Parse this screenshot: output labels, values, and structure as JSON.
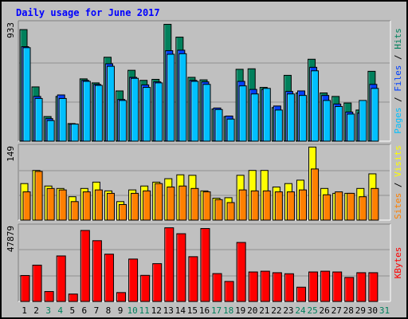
{
  "title": "Daily usage for June 2017",
  "colors": {
    "background": "#c0c0c0",
    "plot": "#c0c0c0",
    "hits": "#00805c",
    "files": "#0040ff",
    "pages": "#00c0ff",
    "visits": "#ffff00",
    "sites": "#ff8000",
    "kbytes": "#ff0000",
    "weekday_label": "#000000",
    "weekend_label": "#00805c",
    "title": "#0000ff"
  },
  "chart_data": [
    {
      "type": "bar",
      "name": "hits-files-pages",
      "ymax_label": "933",
      "ylim": [
        0,
        933
      ],
      "categories": [
        "1",
        "2",
        "3",
        "4",
        "5",
        "6",
        "7",
        "8",
        "9",
        "10",
        "11",
        "12",
        "13",
        "14",
        "15",
        "16",
        "17",
        "18",
        "19",
        "20",
        "21",
        "22",
        "23",
        "24",
        "25",
        "26",
        "27",
        "28",
        "29",
        "30",
        "31"
      ],
      "weekend": [
        "3",
        "4",
        "10",
        "11",
        "17",
        "18",
        "24",
        "25",
        "31"
      ],
      "legend": [
        "Pages",
        "Files",
        "Hits"
      ],
      "series": [
        {
          "name": "Hits",
          "color": "#00805c",
          "values": [
            888,
            432,
            196,
            356,
            140,
            496,
            464,
            668,
            400,
            564,
            484,
            492,
            930,
            828,
            508,
            488,
            256,
            196,
            572,
            576,
            428,
            268,
            524,
            384,
            652,
            384,
            356,
            304,
            248,
            556,
            0
          ]
        },
        {
          "name": "Files",
          "color": "#0040ff",
          "values": [
            752,
            356,
            180,
            368,
            136,
            484,
            452,
            616,
            332,
            508,
            448,
            472,
            720,
            724,
            484,
            472,
            264,
            200,
            476,
            412,
            412,
            280,
            396,
            400,
            588,
            364,
            296,
            232,
            224,
            452,
            0
          ]
        },
        {
          "name": "Pages",
          "color": "#00c0ff",
          "values": [
            744,
            340,
            164,
            340,
            136,
            476,
            444,
            596,
            324,
            500,
            428,
            464,
            692,
            696,
            476,
            452,
            252,
            176,
            440,
            376,
            420,
            248,
            376,
            364,
            560,
            324,
            276,
            216,
            324,
            420,
            0
          ]
        }
      ]
    },
    {
      "type": "bar",
      "name": "visits-sites",
      "ymax_label": "149",
      "ylim": [
        0,
        149
      ],
      "categories": [
        "1",
        "2",
        "3",
        "4",
        "5",
        "6",
        "7",
        "8",
        "9",
        "10",
        "11",
        "12",
        "13",
        "14",
        "15",
        "16",
        "17",
        "18",
        "19",
        "20",
        "21",
        "22",
        "23",
        "24",
        "25",
        "26",
        "27",
        "28",
        "29",
        "30",
        "31"
      ],
      "legend": [
        "Sites",
        "Visits"
      ],
      "series": [
        {
          "name": "Visits",
          "color": "#ffff00",
          "values": [
            75,
            102,
            70,
            65,
            48,
            65,
            78,
            60,
            38,
            62,
            70,
            78,
            85,
            93,
            92,
            60,
            45,
            46,
            92,
            102,
            102,
            68,
            75,
            82,
            150,
            65,
            55,
            55,
            65,
            95,
            0
          ]
        },
        {
          "name": "Sites",
          "color": "#ff8000",
          "values": [
            58,
            100,
            65,
            62,
            38,
            58,
            62,
            55,
            32,
            55,
            60,
            75,
            68,
            70,
            65,
            58,
            42,
            36,
            62,
            60,
            60,
            58,
            58,
            62,
            105,
            52,
            58,
            55,
            48,
            65,
            0
          ]
        }
      ]
    },
    {
      "type": "bar",
      "name": "kbytes",
      "ymax_label": "47879",
      "ylim": [
        0,
        47879
      ],
      "categories": [
        "1",
        "2",
        "3",
        "4",
        "5",
        "6",
        "7",
        "8",
        "9",
        "10",
        "11",
        "12",
        "13",
        "14",
        "15",
        "16",
        "17",
        "18",
        "19",
        "20",
        "21",
        "22",
        "23",
        "24",
        "25",
        "26",
        "27",
        "28",
        "29",
        "30",
        "31"
      ],
      "legend": [
        "KBytes"
      ],
      "series": [
        {
          "name": "KBytes",
          "color": "#ff0000",
          "values": [
            17500,
            24500,
            6700,
            30700,
            5000,
            47900,
            41000,
            31900,
            6000,
            28600,
            17600,
            25500,
            49700,
            45700,
            30200,
            49200,
            18800,
            13500,
            39800,
            19900,
            20400,
            19400,
            18700,
            9600,
            19900,
            20400,
            19900,
            16200,
            19400,
            19400,
            0
          ]
        }
      ]
    }
  ]
}
